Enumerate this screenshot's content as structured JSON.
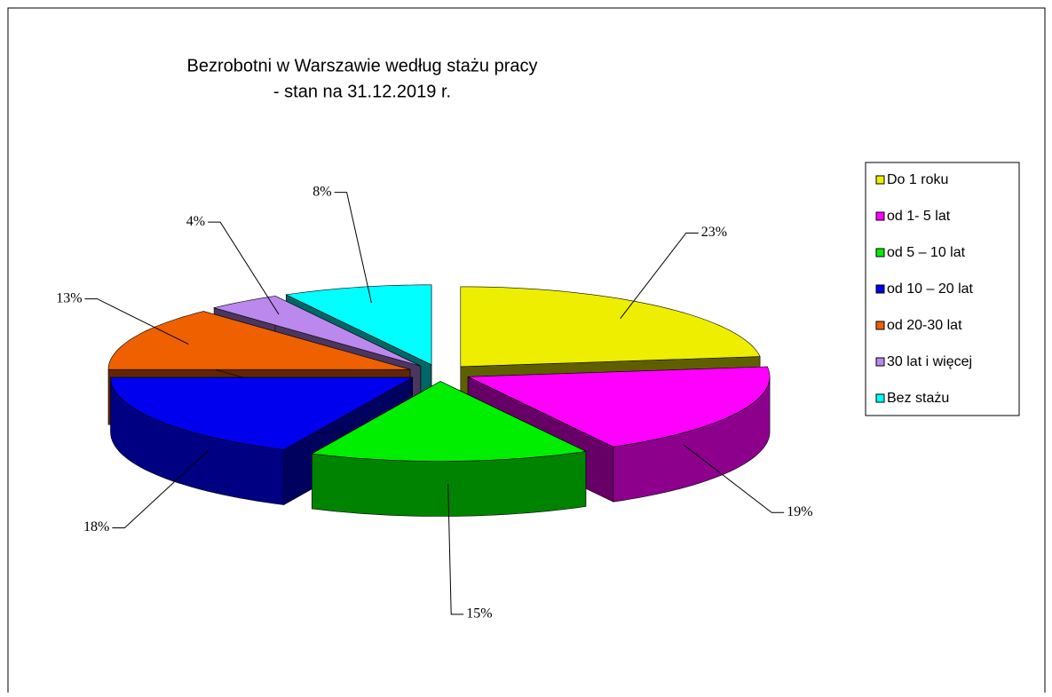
{
  "chart_data": {
    "type": "pie",
    "title": "Bezrobotni w Warszawie według stażu pracy",
    "subtitle": "- stan na 31.12.2019 r.",
    "categories": [
      "Do 1 roku",
      "od 1- 5 lat",
      "od 5 – 10 lat",
      "od 10 – 20 lat",
      "od 20-30 lat",
      "30 lat i więcej",
      "Bez stażu"
    ],
    "values": [
      23,
      19,
      15,
      18,
      13,
      4,
      8
    ],
    "value_labels": [
      "23%",
      "19%",
      "15%",
      "18%",
      "13%",
      "4%",
      "8%"
    ],
    "colors": [
      "#eeee00",
      "#ff00ff",
      "#00ee00",
      "#0000ee",
      "#ee6000",
      "#bb88ee",
      "#00ffff"
    ],
    "legend": "right"
  }
}
